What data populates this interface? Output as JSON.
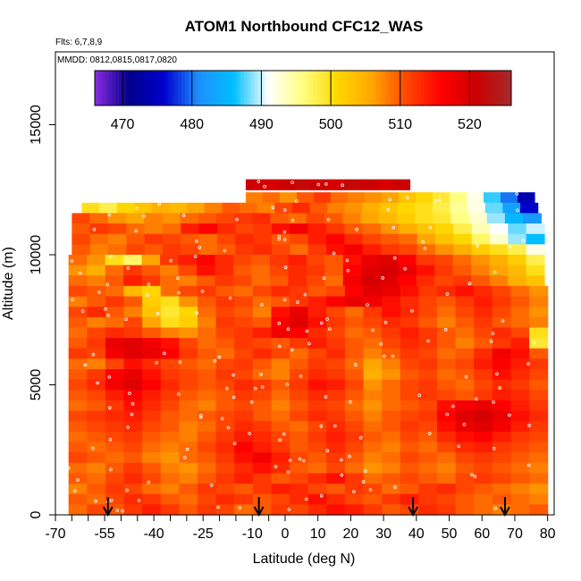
{
  "chart_data": {
    "type": "heatmap",
    "title": "ATOM1 Northbound CFC12_WAS",
    "flights_note": "Flts: 6,7,8,9",
    "dates_note": "MMDD: 0812,0815,0817,0820",
    "xlabel": "Latitude (deg N)",
    "ylabel": "Altitude (m)",
    "xlim": [
      -70,
      82
    ],
    "ylim": [
      0,
      17800
    ],
    "x_ticks": [
      -70,
      -55,
      -40,
      -25,
      -10,
      0,
      10,
      20,
      30,
      40,
      50,
      60,
      70,
      80
    ],
    "x_ticks_minor": [
      -65,
      -60,
      -50,
      -45,
      -35,
      -30,
      -20,
      -15,
      -5
    ],
    "x_tick_labels": [
      "-70",
      "-55",
      "-40",
      "-25",
      "-10",
      "0",
      "10",
      "20",
      "30",
      "40",
      "50",
      "60",
      "70",
      "80"
    ],
    "y_ticks": [
      0,
      5000,
      10000,
      15000
    ],
    "y_tick_labels": [
      "0",
      "5000",
      "10000",
      "15000"
    ],
    "colorbar": {
      "min": 466,
      "max": 526,
      "ticks": [
        470,
        480,
        490,
        500,
        510,
        520
      ],
      "tick_labels": [
        "470",
        "480",
        "490",
        "500",
        "510",
        "520"
      ],
      "colors": [
        "#8a2be2",
        "#00008b",
        "#0000cd",
        "#1e90ff",
        "#00bfff",
        "#ffffff",
        "#ffff80",
        "#ffd700",
        "#ffa500",
        "#ff4500",
        "#ff0000",
        "#cc0000",
        "#a52a2a"
      ]
    },
    "flight_markers_lat": [
      -54,
      -8,
      39,
      67
    ],
    "rows": [
      {
        "alt": 12700,
        "lat_min": -12,
        "lat_max": 38,
        "values": [
          521,
          520,
          521,
          522,
          521,
          520,
          522,
          521,
          520,
          521
        ]
      },
      {
        "alt": 12200,
        "lat_min": -12,
        "lat_max": 76,
        "values": [
          508,
          509,
          507,
          510,
          512,
          509,
          508,
          507,
          506,
          503,
          501,
          499,
          496,
          492,
          487,
          480,
          474
        ]
      },
      {
        "alt": 11800,
        "lat_min": -62,
        "lat_max": 77,
        "values": [
          500,
          498,
          501,
          503,
          505,
          504,
          506,
          508,
          510,
          509,
          508,
          511,
          513,
          510,
          508,
          507,
          505,
          503,
          501,
          500,
          498,
          495,
          492,
          488,
          483,
          476
        ]
      },
      {
        "alt": 11400,
        "lat_min": -65,
        "lat_max": 78,
        "values": [
          511,
          509,
          507,
          506,
          508,
          507,
          509,
          510,
          511,
          512,
          513,
          510,
          509,
          511,
          510,
          508,
          506,
          504,
          502,
          500,
          499,
          496,
          493,
          489,
          485,
          482
        ]
      },
      {
        "alt": 11000,
        "lat_min": -65,
        "lat_max": 79,
        "values": [
          510,
          512,
          511,
          509,
          508,
          509,
          514,
          516,
          513,
          511,
          512,
          515,
          517,
          514,
          512,
          510,
          509,
          507,
          505,
          503,
          501,
          498,
          494,
          491,
          488,
          490
        ]
      },
      {
        "alt": 10600,
        "lat_min": -65,
        "lat_max": 79,
        "values": [
          511,
          509,
          508,
          510,
          512,
          511,
          510,
          509,
          511,
          513,
          512,
          510,
          511,
          514,
          516,
          513,
          511,
          510,
          509,
          506,
          503,
          501,
          497,
          493,
          489,
          486
        ]
      },
      {
        "alt": 10200,
        "lat_min": -65,
        "lat_max": 79,
        "values": [
          510,
          508,
          509,
          511,
          510,
          512,
          511,
          509,
          510,
          512,
          513,
          511,
          509,
          512,
          515,
          517,
          514,
          512,
          511,
          509,
          507,
          505,
          502,
          500,
          498,
          492
        ]
      },
      {
        "alt": 9800,
        "lat_min": -66,
        "lat_max": 79,
        "values": [
          509,
          507,
          500,
          497,
          506,
          512,
          514,
          516,
          513,
          511,
          510,
          512,
          514,
          511,
          510,
          515,
          518,
          519,
          516,
          512,
          511,
          509,
          507,
          505,
          502,
          498
        ]
      },
      {
        "alt": 9400,
        "lat_min": -66,
        "lat_max": 79,
        "values": [
          507,
          505,
          509,
          512,
          510,
          508,
          511,
          515,
          513,
          510,
          509,
          511,
          513,
          512,
          510,
          516,
          519,
          520,
          518,
          515,
          512,
          510,
          508,
          506,
          504,
          500
        ]
      },
      {
        "alt": 9000,
        "lat_min": -66,
        "lat_max": 79,
        "values": [
          509,
          508,
          510,
          514,
          512,
          509,
          508,
          510,
          512,
          511,
          509,
          510,
          513,
          511,
          509,
          517,
          520,
          519,
          516,
          513,
          511,
          512,
          510,
          508,
          505,
          503
        ]
      },
      {
        "alt": 8600,
        "lat_min": -66,
        "lat_max": 80,
        "values": [
          511,
          510,
          509,
          504,
          501,
          509,
          511,
          512,
          510,
          509,
          511,
          513,
          512,
          510,
          511,
          516,
          519,
          518,
          515,
          512,
          513,
          515,
          513,
          511,
          509,
          507
        ]
      },
      {
        "alt": 8200,
        "lat_min": -66,
        "lat_max": 80,
        "values": [
          508,
          510,
          512,
          510,
          502,
          500,
          507,
          510,
          512,
          511,
          509,
          510,
          512,
          514,
          516,
          518,
          517,
          515,
          513,
          511,
          510,
          512,
          514,
          512,
          510,
          508
        ]
      },
      {
        "alt": 7800,
        "lat_min": -66,
        "lat_max": 80,
        "values": [
          511,
          513,
          510,
          508,
          503,
          499,
          501,
          509,
          511,
          510,
          508,
          515,
          518,
          514,
          511,
          509,
          512,
          515,
          513,
          511,
          509,
          511,
          513,
          511,
          509,
          507
        ]
      },
      {
        "alt": 7400,
        "lat_min": -66,
        "lat_max": 80,
        "values": [
          510,
          508,
          509,
          511,
          506,
          500,
          502,
          508,
          512,
          511,
          510,
          516,
          519,
          515,
          512,
          510,
          511,
          513,
          512,
          510,
          508,
          510,
          512,
          510,
          509,
          508
        ]
      },
      {
        "alt": 7000,
        "lat_min": -66,
        "lat_max": 80,
        "values": [
          509,
          511,
          513,
          512,
          510,
          508,
          507,
          509,
          511,
          512,
          514,
          517,
          516,
          513,
          511,
          509,
          510,
          512,
          514,
          512,
          510,
          509,
          511,
          513,
          511,
          500
        ]
      },
      {
        "alt": 6600,
        "lat_min": -66,
        "lat_max": 80,
        "values": [
          510,
          512,
          518,
          519,
          517,
          515,
          511,
          509,
          510,
          512,
          511,
          510,
          512,
          514,
          512,
          510,
          509,
          511,
          513,
          512,
          510,
          508,
          510,
          512,
          514,
          499
        ]
      },
      {
        "alt": 6200,
        "lat_min": -66,
        "lat_max": 80,
        "values": [
          512,
          511,
          517,
          519,
          518,
          516,
          512,
          510,
          509,
          511,
          513,
          511,
          509,
          511,
          513,
          510,
          508,
          510,
          512,
          511,
          509,
          510,
          513,
          517,
          515,
          510
        ]
      },
      {
        "alt": 5800,
        "lat_min": -66,
        "lat_max": 80,
        "values": [
          509,
          508,
          511,
          515,
          513,
          511,
          510,
          509,
          511,
          512,
          510,
          508,
          510,
          512,
          511,
          509,
          506,
          508,
          511,
          512,
          510,
          511,
          514,
          516,
          514,
          512
        ]
      },
      {
        "alt": 5400,
        "lat_min": -66,
        "lat_max": 80,
        "values": [
          510,
          512,
          516,
          518,
          515,
          512,
          511,
          510,
          512,
          511,
          509,
          508,
          511,
          513,
          512,
          510,
          505,
          507,
          510,
          511,
          509,
          510,
          512,
          515,
          513,
          511
        ]
      },
      {
        "alt": 5000,
        "lat_min": -66,
        "lat_max": 80,
        "values": [
          511,
          513,
          517,
          519,
          516,
          513,
          511,
          510,
          511,
          513,
          512,
          510,
          512,
          515,
          514,
          511,
          507,
          509,
          511,
          512,
          510,
          509,
          511,
          513,
          512,
          510
        ]
      },
      {
        "alt": 4600,
        "lat_min": -66,
        "lat_max": 80,
        "values": [
          510,
          511,
          514,
          516,
          514,
          512,
          510,
          509,
          510,
          512,
          511,
          509,
          511,
          513,
          512,
          510,
          508,
          509,
          511,
          512,
          511,
          510,
          512,
          514,
          513,
          511
        ]
      },
      {
        "alt": 4200,
        "lat_min": -66,
        "lat_max": 80,
        "values": [
          509,
          510,
          512,
          515,
          513,
          511,
          509,
          508,
          510,
          511,
          510,
          508,
          510,
          512,
          511,
          509,
          507,
          509,
          510,
          511,
          515,
          517,
          518,
          516,
          514,
          512
        ]
      },
      {
        "alt": 3800,
        "lat_min": -66,
        "lat_max": 80,
        "values": [
          511,
          512,
          513,
          514,
          512,
          510,
          509,
          510,
          511,
          512,
          510,
          509,
          511,
          513,
          512,
          510,
          508,
          510,
          511,
          512,
          516,
          519,
          520,
          518,
          515,
          513
        ]
      },
      {
        "alt": 3400,
        "lat_min": -66,
        "lat_max": 80,
        "values": [
          510,
          511,
          512,
          513,
          511,
          510,
          508,
          509,
          511,
          513,
          512,
          510,
          509,
          511,
          513,
          511,
          509,
          510,
          512,
          511,
          515,
          518,
          519,
          517,
          514,
          512
        ]
      },
      {
        "alt": 3000,
        "lat_min": -66,
        "lat_max": 80,
        "values": [
          509,
          510,
          511,
          512,
          510,
          509,
          508,
          510,
          512,
          514,
          513,
          511,
          510,
          512,
          514,
          512,
          510,
          509,
          511,
          510,
          513,
          515,
          516,
          514,
          512,
          511
        ]
      },
      {
        "alt": 2600,
        "lat_min": -66,
        "lat_max": 80,
        "values": [
          510,
          509,
          510,
          511,
          509,
          508,
          509,
          511,
          513,
          516,
          514,
          512,
          510,
          511,
          513,
          511,
          509,
          508,
          510,
          509,
          511,
          513,
          514,
          512,
          511,
          510
        ]
      },
      {
        "alt": 2200,
        "lat_min": -66,
        "lat_max": 80,
        "values": [
          511,
          510,
          509,
          510,
          508,
          507,
          509,
          510,
          512,
          515,
          517,
          514,
          511,
          510,
          512,
          510,
          508,
          509,
          511,
          510,
          509,
          511,
          512,
          511,
          510,
          509
        ]
      },
      {
        "alt": 1800,
        "lat_min": -66,
        "lat_max": 80,
        "values": [
          509,
          508,
          510,
          512,
          510,
          508,
          507,
          509,
          511,
          513,
          515,
          513,
          510,
          509,
          511,
          509,
          507,
          508,
          510,
          509,
          508,
          510,
          511,
          510,
          509,
          508
        ]
      },
      {
        "alt": 1400,
        "lat_min": -66,
        "lat_max": 80,
        "values": [
          510,
          509,
          511,
          513,
          511,
          509,
          508,
          510,
          512,
          514,
          512,
          510,
          511,
          513,
          515,
          512,
          509,
          510,
          511,
          510,
          509,
          511,
          512,
          511,
          510,
          509
        ]
      },
      {
        "alt": 1000,
        "lat_min": -66,
        "lat_max": 80,
        "values": [
          508,
          510,
          512,
          511,
          509,
          508,
          510,
          512,
          511,
          510,
          512,
          514,
          513,
          511,
          510,
          512,
          511,
          509,
          510,
          512,
          513,
          511,
          510,
          509,
          508,
          507
        ]
      },
      {
        "alt": 600,
        "lat_min": -66,
        "lat_max": 80,
        "values": [
          510,
          509,
          511,
          513,
          512,
          510,
          509,
          511,
          513,
          512,
          510,
          511,
          513,
          515,
          513,
          511,
          510,
          512,
          514,
          512,
          511,
          510,
          509,
          510,
          509,
          508
        ]
      },
      {
        "alt": 200,
        "lat_min": -66,
        "lat_max": 80,
        "values": [
          509,
          511,
          510,
          512,
          514,
          512,
          510,
          512,
          511,
          509,
          510,
          512,
          511,
          513,
          515,
          514,
          512,
          510,
          511,
          513,
          512,
          510,
          509,
          508,
          509,
          510
        ]
      }
    ]
  }
}
